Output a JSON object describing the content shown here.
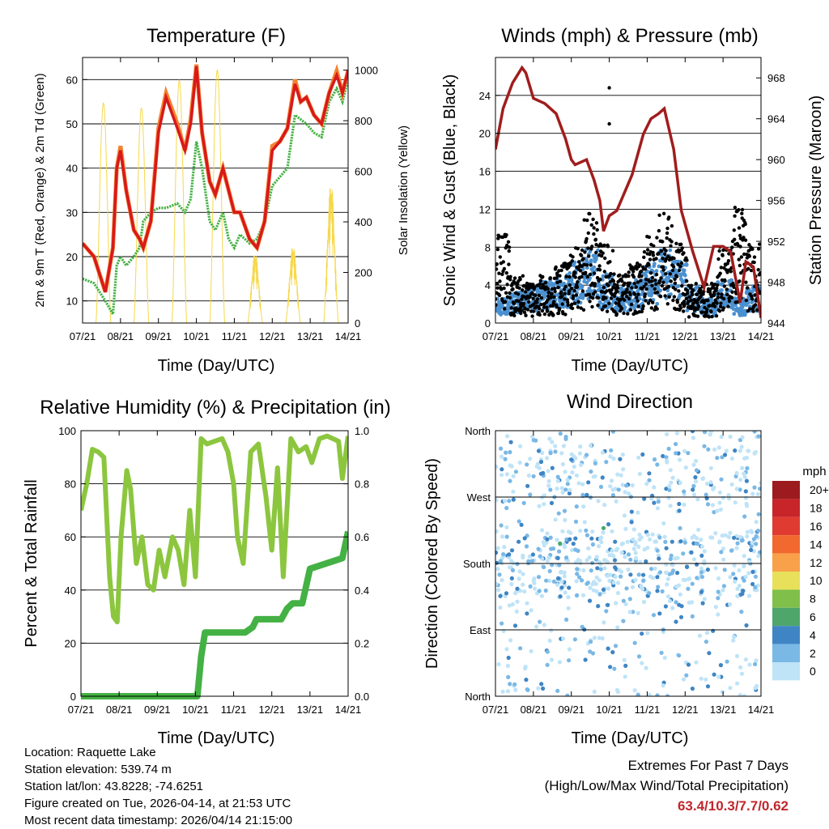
{
  "figure": {
    "time_ticks": [
      "07/21",
      "08/21",
      "09/21",
      "10/21",
      "11/21",
      "12/21",
      "13/21",
      "14/21"
    ],
    "time_label": "Time (Day/UTC)"
  },
  "info": {
    "location": "Location: Raquette Lake",
    "elevation": "Station elevation: 539.74 m",
    "latlon": "Station lat/lon: 43.8228; -74.6251",
    "created": "Figure created on Tue, 2026-04-14, at 21:53 UTC",
    "recent": "Most recent data timestamp: 2026/04/14 21:15:00"
  },
  "extremes": {
    "title": "Extremes For Past 7 Days",
    "subtitle": "(High/Low/Max Wind/Total Precipitation)",
    "values": "63.4/10.3/7.7/0.62"
  },
  "chart_data": [
    {
      "id": "temperature",
      "type": "line",
      "title": "Temperature (F)",
      "xlabel": "Time (Day/UTC)",
      "ylabel": "2m & 9m T (Red, Orange) & 2m Td (Green)",
      "y2label": "Solar Insolation (Yellow)",
      "ylim": [
        5,
        65
      ],
      "yticks": [
        "10",
        "20",
        "30",
        "40",
        "50",
        "60"
      ],
      "y2lim": [
        0,
        1050
      ],
      "y2ticks": [
        "0",
        "200",
        "400",
        "600",
        "800",
        "1000"
      ],
      "x_days": [
        0,
        0.3,
        0.6,
        0.8,
        0.9,
        1.0,
        1.15,
        1.35,
        1.5,
        1.6,
        1.8,
        2.0,
        2.2,
        2.5,
        2.7,
        2.85,
        3.0,
        3.15,
        3.35,
        3.5,
        3.7,
        3.85,
        4.0,
        4.15,
        4.4,
        4.6,
        4.8,
        5.0,
        5.2,
        5.4,
        5.6,
        5.75,
        5.9,
        6.1,
        6.3,
        6.5,
        6.7,
        6.85,
        7.0
      ],
      "series": [
        {
          "name": "2m T",
          "color": "#d7191c",
          "values": [
            23,
            20,
            12,
            22,
            40,
            44,
            35,
            26,
            24,
            22,
            28,
            48,
            56,
            49,
            44,
            50,
            63,
            48,
            37,
            34,
            40,
            35,
            30,
            30,
            24,
            22,
            28,
            44,
            46,
            49,
            59,
            55,
            56,
            52,
            50,
            57,
            61,
            57,
            62
          ]
        },
        {
          "name": "9m T",
          "color": "#f58230",
          "values": [
            23,
            20,
            12,
            22,
            40,
            45,
            35,
            26,
            24,
            22,
            28,
            49,
            57,
            50,
            44,
            51,
            63.4,
            48,
            37,
            34,
            40,
            35,
            30,
            30,
            24,
            22,
            28,
            45,
            46,
            49,
            60,
            55,
            56,
            52,
            50,
            57,
            62,
            57,
            62
          ]
        },
        {
          "name": "2m Td",
          "color": "#44b144",
          "values": [
            15,
            14,
            10,
            7,
            18,
            20,
            18,
            20,
            22,
            28,
            30,
            31,
            31,
            32,
            30,
            33,
            46,
            40,
            28,
            26,
            30,
            24,
            22,
            25,
            23,
            24,
            28,
            36,
            38,
            40,
            52,
            51,
            50,
            48,
            47,
            55,
            58,
            55,
            60
          ]
        }
      ],
      "solar": {
        "name": "Solar Insolation",
        "color": "#f6d84a",
        "day_peaks": [
          870,
          850,
          960,
          1000,
          280,
          310,
          560
        ]
      }
    },
    {
      "id": "winds",
      "type": "scatter",
      "title": "Winds (mph) & Pressure (mb)",
      "xlabel": "Time (Day/UTC)",
      "ylabel": "Sonic Wind & Gust (Blue, Black)",
      "y2label": "Station Pressure (Maroon)",
      "ylim": [
        0,
        28
      ],
      "yticks": [
        "0",
        "4",
        "8",
        "12",
        "16",
        "20",
        "24"
      ],
      "y2lim": [
        944,
        970
      ],
      "y2ticks": [
        "944",
        "948",
        "952",
        "956",
        "960",
        "964",
        "968"
      ],
      "pressure": {
        "color": "#a01d1d",
        "x_days": [
          0,
          0.2,
          0.45,
          0.7,
          0.8,
          1.0,
          1.3,
          1.6,
          1.85,
          2.0,
          2.1,
          2.4,
          2.6,
          2.75,
          2.85,
          3.0,
          3.2,
          3.6,
          3.9,
          4.1,
          4.3,
          4.45,
          4.7,
          4.9,
          5.2,
          5.5,
          5.75,
          6.0,
          6.2,
          6.45,
          6.6,
          6.8,
          7.0
        ],
        "values": [
          961,
          965,
          967.5,
          969,
          968.5,
          966,
          965.5,
          964.5,
          962,
          960,
          959.5,
          960,
          958,
          956,
          953,
          954.5,
          955,
          958.5,
          962.5,
          964,
          964.5,
          965,
          961,
          955,
          951,
          947.5,
          951.5,
          951.5,
          951,
          946,
          950,
          949.5,
          944.5
        ]
      },
      "wind_color": "#4a90d0",
      "gust_color": "#000000",
      "wind_activity": [
        2,
        2.5,
        3,
        3.5,
        4,
        5,
        6,
        4,
        3,
        3.5,
        5,
        6,
        5,
        3,
        2,
        3.5,
        2,
        3
      ],
      "gust_activity": [
        9,
        5,
        4,
        5,
        6,
        8,
        11,
        8,
        5,
        6,
        9,
        11,
        8,
        4,
        4,
        8,
        12,
        8
      ]
    },
    {
      "id": "humidity",
      "type": "line",
      "title": "Relative Humidity (%) & Precipitation (in)",
      "xlabel": "Time (Day/UTC)",
      "ylabel": "Percent & Total Rainfall",
      "ylim": [
        0,
        100
      ],
      "yticks": [
        "0",
        "20",
        "40",
        "60",
        "80",
        "100"
      ],
      "y2lim": [
        0,
        1.0
      ],
      "y2ticks": [
        "0.0",
        "0.2",
        "0.4",
        "0.6",
        "0.8",
        "1.0"
      ],
      "rh": {
        "color": "#8cc63f",
        "x_days": [
          0,
          0.15,
          0.3,
          0.45,
          0.6,
          0.75,
          0.85,
          0.95,
          1.05,
          1.2,
          1.3,
          1.45,
          1.6,
          1.75,
          1.9,
          2.05,
          2.2,
          2.4,
          2.55,
          2.7,
          2.85,
          3.0,
          3.15,
          3.3,
          3.5,
          3.7,
          3.85,
          4.0,
          4.1,
          4.25,
          4.45,
          4.65,
          4.85,
          5.0,
          5.15,
          5.3,
          5.5,
          5.7,
          5.9,
          6.05,
          6.25,
          6.45,
          6.6,
          6.75,
          6.85,
          7.0
        ],
        "values": [
          70,
          80,
          93,
          92,
          90,
          45,
          30,
          28,
          60,
          85,
          78,
          50,
          60,
          42,
          40,
          55,
          45,
          60,
          55,
          42,
          70,
          45,
          97,
          95,
          96,
          97,
          92,
          80,
          60,
          50,
          92,
          95,
          75,
          55,
          86,
          45,
          97,
          92,
          94,
          88,
          97,
          98,
          97,
          96,
          82,
          98
        ]
      },
      "precip": {
        "color": "#44b144",
        "x_days": [
          0,
          2.8,
          3.05,
          3.15,
          3.25,
          4.3,
          4.5,
          4.6,
          5.25,
          5.4,
          5.55,
          5.8,
          6.0,
          6.85,
          7.0
        ],
        "values": [
          0.0,
          0.0,
          0.0,
          0.15,
          0.24,
          0.24,
          0.26,
          0.29,
          0.29,
          0.33,
          0.35,
          0.35,
          0.48,
          0.52,
          0.62
        ]
      }
    },
    {
      "id": "wind_direction",
      "type": "scatter",
      "title": "Wind Direction",
      "xlabel": "Time (Day/UTC)",
      "ylabel": "Direction (Colored By Speed)",
      "ylim": [
        0,
        360
      ],
      "yticks": [
        "North",
        "East",
        "South",
        "West",
        "North"
      ],
      "colorbar": {
        "title": "mph",
        "labels": [
          "20+",
          "18",
          "16",
          "14",
          "12",
          "10",
          "8",
          "6",
          "4",
          "2",
          "0"
        ],
        "colors": [
          "#9b1b1e",
          "#c7252a",
          "#e03b31",
          "#f1692e",
          "#f8a14a",
          "#e8e05a",
          "#7fbf4a",
          "#4ea66b",
          "#3f85c4",
          "#7ab8e5",
          "#bfe3f7"
        ]
      }
    }
  ]
}
